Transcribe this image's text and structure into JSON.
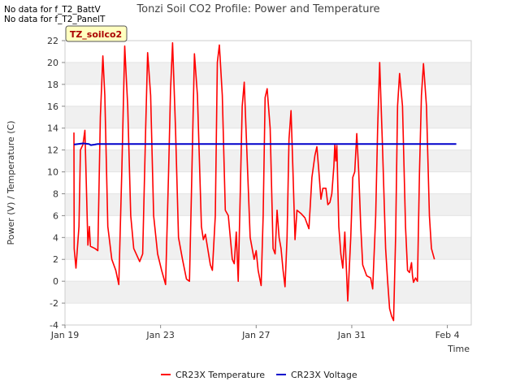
{
  "header": {
    "title": "Tonzi Soil CO2 Profile: Power and Temperature",
    "no_data_1": "No data for f_T2_BattV",
    "no_data_2": "No data for f_T2_PanelT"
  },
  "tooltip_label": "TZ_soilco2",
  "chart_data": {
    "type": "line",
    "title": "Tonzi Soil CO2 Profile: Power and Temperature",
    "xlabel": "Time",
    "ylabel": "Power (V) / Temperature (C)",
    "xlim": [
      "2000-01-19",
      "2000-02-05"
    ],
    "ylim": [
      -4,
      22
    ],
    "yticks": [
      -4,
      -2,
      0,
      2,
      4,
      6,
      8,
      10,
      12,
      14,
      16,
      18,
      20,
      22
    ],
    "xticks": [
      {
        "date": "2000-01-19",
        "label": "Jan 19"
      },
      {
        "date": "2000-01-23",
        "label": "Jan 23"
      },
      {
        "date": "2000-01-27",
        "label": "Jan 27"
      },
      {
        "date": "2000-01-31",
        "label": "Jan 31"
      },
      {
        "date": "2000-02-04",
        "label": "Feb 4"
      }
    ],
    "grid": "horizontal bands",
    "legend_position": "bottom",
    "series": [
      {
        "name": "CR23X Temperature",
        "color": "#ff0000",
        "points": [
          [
            "2000-01-19 09:00",
            13.6
          ],
          [
            "2000-01-19 09:15",
            3.0
          ],
          [
            "2000-01-19 11:00",
            1.2
          ],
          [
            "2000-01-19 14:00",
            5.0
          ],
          [
            "2000-01-19 15:30",
            12.0
          ],
          [
            "2000-01-19 18:00",
            12.5
          ],
          [
            "2000-01-19 20:00",
            13.8
          ],
          [
            "2000-01-19 23:00",
            3.3
          ],
          [
            "2000-01-20 00:30",
            5.0
          ],
          [
            "2000-01-20 01:30",
            3.2
          ],
          [
            "2000-01-20 06:00",
            3.0
          ],
          [
            "2000-01-20 09:00",
            2.8
          ],
          [
            "2000-01-20 11:30",
            15.0
          ],
          [
            "2000-01-20 14:00",
            20.6
          ],
          [
            "2000-01-20 16:00",
            17.0
          ],
          [
            "2000-01-20 19:00",
            5.0
          ],
          [
            "2000-01-20 23:00",
            2.0
          ],
          [
            "2000-01-21 03:00",
            1.0
          ],
          [
            "2000-01-21 06:00",
            -0.3
          ],
          [
            "2000-01-21 09:00",
            10.0
          ],
          [
            "2000-01-21 12:00",
            21.5
          ],
          [
            "2000-01-21 15:00",
            16.0
          ],
          [
            "2000-01-21 18:00",
            6.0
          ],
          [
            "2000-01-21 21:00",
            3.0
          ],
          [
            "2000-01-22 03:00",
            1.8
          ],
          [
            "2000-01-22 06:00",
            2.5
          ],
          [
            "2000-01-22 09:00",
            14.0
          ],
          [
            "2000-01-22 11:00",
            20.9
          ],
          [
            "2000-01-22 14:00",
            17.0
          ],
          [
            "2000-01-22 17:00",
            6.0
          ],
          [
            "2000-01-22 21:00",
            2.5
          ],
          [
            "2000-01-23 01:00",
            1.0
          ],
          [
            "2000-01-23 05:00",
            -0.3
          ],
          [
            "2000-01-23 08:00",
            10.0
          ],
          [
            "2000-01-23 10:00",
            17.5
          ],
          [
            "2000-01-23 12:00",
            21.8
          ],
          [
            "2000-01-23 15:00",
            14.0
          ],
          [
            "2000-01-23 18:00",
            4.0
          ],
          [
            "2000-01-23 22:00",
            2.0
          ],
          [
            "2000-01-24 02:00",
            0.2
          ],
          [
            "2000-01-24 05:00",
            0.0
          ],
          [
            "2000-01-24 07:00",
            8.0
          ],
          [
            "2000-01-24 10:00",
            20.8
          ],
          [
            "2000-01-24 13:00",
            17.0
          ],
          [
            "2000-01-24 17:00",
            5.0
          ],
          [
            "2000-01-24 19:00",
            3.8
          ],
          [
            "2000-01-24 21:00",
            4.3
          ],
          [
            "2000-01-25 02:00",
            1.5
          ],
          [
            "2000-01-25 04:00",
            1.0
          ],
          [
            "2000-01-25 07:00",
            6.0
          ],
          [
            "2000-01-25 09:00",
            20.0
          ],
          [
            "2000-01-25 11:00",
            21.6
          ],
          [
            "2000-01-25 14:00",
            17.0
          ],
          [
            "2000-01-25 17:00",
            6.5
          ],
          [
            "2000-01-25 20:00",
            6.0
          ],
          [
            "2000-01-26 00:00",
            2.0
          ],
          [
            "2000-01-26 02:00",
            1.6
          ],
          [
            "2000-01-26 04:00",
            4.5
          ],
          [
            "2000-01-26 06:00",
            0.0
          ],
          [
            "2000-01-26 08:00",
            8.0
          ],
          [
            "2000-01-26 10:00",
            16.0
          ],
          [
            "2000-01-26 12:00",
            18.2
          ],
          [
            "2000-01-26 15:00",
            11.0
          ],
          [
            "2000-01-26 18:00",
            4.0
          ],
          [
            "2000-01-26 22:00",
            2.0
          ],
          [
            "2000-01-27 00:00",
            2.8
          ],
          [
            "2000-01-27 02:00",
            1.0
          ],
          [
            "2000-01-27 05:00",
            -0.4
          ],
          [
            "2000-01-27 07:00",
            6.0
          ],
          [
            "2000-01-27 09:00",
            16.8
          ],
          [
            "2000-01-27 11:00",
            17.6
          ],
          [
            "2000-01-27 14:00",
            14.0
          ],
          [
            "2000-01-27 17:00",
            3.0
          ],
          [
            "2000-01-27 19:00",
            2.5
          ],
          [
            "2000-01-27 21:00",
            6.5
          ],
          [
            "2000-01-27 23:00",
            4.0
          ],
          [
            "2000-01-28 01:00",
            3.0
          ],
          [
            "2000-01-28 03:00",
            1.0
          ],
          [
            "2000-01-28 05:00",
            -0.5
          ],
          [
            "2000-01-28 07:00",
            4.0
          ],
          [
            "2000-01-28 09:00",
            13.0
          ],
          [
            "2000-01-28 11:00",
            15.6
          ],
          [
            "2000-01-28 13:00",
            10.0
          ],
          [
            "2000-01-28 15:00",
            3.8
          ],
          [
            "2000-01-28 17:00",
            6.5
          ],
          [
            "2000-01-28 21:00",
            6.2
          ],
          [
            "2000-01-29 01:00",
            5.8
          ],
          [
            "2000-01-29 05:00",
            4.8
          ],
          [
            "2000-01-29 08:00",
            9.5
          ],
          [
            "2000-01-29 11:00",
            11.5
          ],
          [
            "2000-01-29 13:00",
            12.3
          ],
          [
            "2000-01-29 15:00",
            10.0
          ],
          [
            "2000-01-29 17:00",
            7.5
          ],
          [
            "2000-01-29 19:00",
            8.5
          ],
          [
            "2000-01-29 22:00",
            8.5
          ],
          [
            "2000-01-30 00:00",
            7.0
          ],
          [
            "2000-01-30 02:00",
            7.2
          ],
          [
            "2000-01-30 04:00",
            8.0
          ],
          [
            "2000-01-30 06:00",
            10.5
          ],
          [
            "2000-01-30 07:00",
            12.5
          ],
          [
            "2000-01-30 08:00",
            11.0
          ],
          [
            "2000-01-30 09:00",
            12.4
          ],
          [
            "2000-01-30 11:00",
            5.0
          ],
          [
            "2000-01-30 13:00",
            2.5
          ],
          [
            "2000-01-30 15:00",
            1.2
          ],
          [
            "2000-01-30 17:00",
            4.5
          ],
          [
            "2000-01-30 20:00",
            -1.8
          ],
          [
            "2000-01-30 23:00",
            4.0
          ],
          [
            "2000-01-31 01:00",
            9.5
          ],
          [
            "2000-01-31 03:00",
            10.0
          ],
          [
            "2000-01-31 05:00",
            13.5
          ],
          [
            "2000-01-31 07:00",
            10.0
          ],
          [
            "2000-01-31 09:00",
            5.0
          ],
          [
            "2000-01-31 11:00",
            1.5
          ],
          [
            "2000-01-31 15:00",
            0.5
          ],
          [
            "2000-01-31 19:00",
            0.3
          ],
          [
            "2000-01-31 21:00",
            -0.7
          ],
          [
            "2000-02-01 00:00",
            6.0
          ],
          [
            "2000-02-01 02:00",
            14.0
          ],
          [
            "2000-02-01 04:00",
            20.0
          ],
          [
            "2000-02-01 07:00",
            12.0
          ],
          [
            "2000-02-01 10:00",
            3.0
          ],
          [
            "2000-02-01 12:00",
            0.0
          ],
          [
            "2000-02-01 14:00",
            -2.5
          ],
          [
            "2000-02-01 16:00",
            -3.2
          ],
          [
            "2000-02-01 18:00",
            -3.6
          ],
          [
            "2000-02-01 20:00",
            4.0
          ],
          [
            "2000-02-01 22:00",
            16.0
          ],
          [
            "2000-02-02 00:00",
            19.0
          ],
          [
            "2000-02-02 03:00",
            16.0
          ],
          [
            "2000-02-02 06:00",
            5.0
          ],
          [
            "2000-02-02 08:00",
            1.0
          ],
          [
            "2000-02-02 10:00",
            0.8
          ],
          [
            "2000-02-02 12:00",
            1.7
          ],
          [
            "2000-02-02 13:00",
            0.5
          ],
          [
            "2000-02-02 14:00",
            -0.1
          ],
          [
            "2000-02-02 16:00",
            0.3
          ],
          [
            "2000-02-02 18:00",
            0.0
          ],
          [
            "2000-02-02 20:00",
            10.0
          ],
          [
            "2000-02-02 22:00",
            17.0
          ],
          [
            "2000-02-03 00:00",
            19.9
          ],
          [
            "2000-02-03 03:00",
            16.0
          ],
          [
            "2000-02-03 06:00",
            6.0
          ],
          [
            "2000-02-03 08:00",
            3.0
          ],
          [
            "2000-02-03 11:00",
            2.0
          ]
        ]
      },
      {
        "name": "CR23X Voltage",
        "color": "#0000cc",
        "points": [
          [
            "2000-01-19 09:00",
            12.5
          ],
          [
            "2000-01-19 18:00",
            12.6
          ],
          [
            "2000-01-20 00:00",
            12.55
          ],
          [
            "2000-01-20 02:00",
            12.45
          ],
          [
            "2000-01-20 06:00",
            12.5
          ],
          [
            "2000-01-20 09:00",
            12.55
          ],
          [
            "2000-01-21 00:00",
            12.55
          ],
          [
            "2000-01-25 00:00",
            12.55
          ],
          [
            "2000-01-30 00:00",
            12.55
          ],
          [
            "2000-02-04 00:00",
            12.55
          ],
          [
            "2000-02-04 09:00",
            12.55
          ]
        ]
      }
    ]
  }
}
